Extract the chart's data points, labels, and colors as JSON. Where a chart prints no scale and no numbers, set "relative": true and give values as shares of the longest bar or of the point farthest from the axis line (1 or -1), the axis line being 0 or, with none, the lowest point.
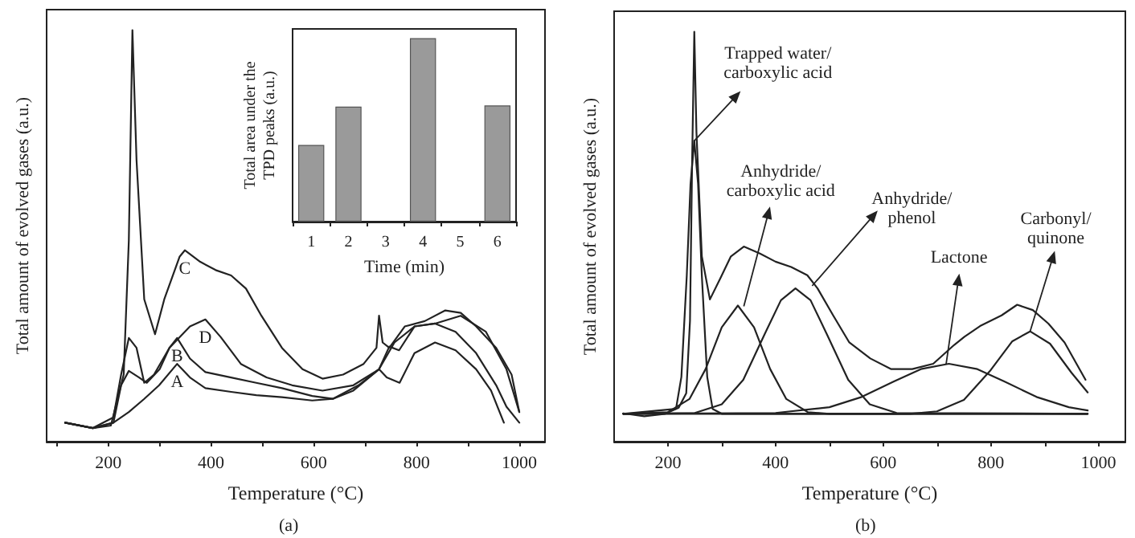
{
  "chart_data": [
    {
      "type": "line",
      "xlabel": "Temperature (°C)",
      "ylabel": "Total amount of evolved gases (a.u.)",
      "relative": true,
      "marker": "none",
      "line_style": "solid",
      "xlim": [
        80,
        1050
      ],
      "xticks": [
        {
          "value": 100,
          "label": null
        },
        200,
        {
          "value": 300,
          "label": null
        },
        400,
        {
          "value": 500,
          "label": null
        },
        600,
        {
          "value": 700,
          "label": null
        },
        800,
        {
          "value": 900,
          "label": null
        },
        1000
      ],
      "annotations": [
        "(a)"
      ],
      "series": [
        {
          "name": "A",
          "color": "#222222",
          "x": [
            116,
            170,
            210,
            240,
            270,
            299,
            334,
            359,
            389,
            439,
            488,
            538,
            597,
            637,
            677,
            727,
            742,
            767,
            796,
            836,
            876,
            916,
            945,
            970
          ],
          "values": [
            0.046,
            0.033,
            0.046,
            0.072,
            0.104,
            0.137,
            0.189,
            0.156,
            0.13,
            0.121,
            0.113,
            0.108,
            0.1,
            0.104,
            0.124,
            0.176,
            0.156,
            0.143,
            0.215,
            0.241,
            0.222,
            0.176,
            0.124,
            0.046
          ]
        },
        {
          "name": "B",
          "color": "#222222",
          "x": [
            116,
            170,
            210,
            225,
            240,
            260,
            275,
            300,
            319,
            334,
            359,
            389,
            439,
            488,
            538,
            597,
            637,
            687,
            727,
            747,
            766,
            796,
            836,
            886,
            935,
            975,
            1000
          ],
          "values": [
            0.046,
            0.033,
            0.046,
            0.137,
            0.172,
            0.156,
            0.143,
            0.176,
            0.228,
            0.252,
            0.202,
            0.169,
            0.156,
            0.143,
            0.13,
            0.111,
            0.104,
            0.137,
            0.176,
            0.231,
            0.222,
            0.28,
            0.287,
            0.306,
            0.267,
            0.176,
            0.072
          ]
        },
        {
          "name": "C",
          "color": "#222222",
          "x": [
            116,
            170,
            205,
            230,
            240,
            247,
            255,
            270,
            291,
            309,
            339,
            349,
            379,
            409,
            439,
            468,
            498,
            538,
            578,
            617,
            657,
            697,
            722,
            727,
            734,
            747,
            777,
            816,
            856,
            886,
            916,
            955,
            985,
            1000
          ],
          "values": [
            0.046,
            0.033,
            0.039,
            0.163,
            0.489,
            1.0,
            0.684,
            0.346,
            0.261,
            0.346,
            0.45,
            0.465,
            0.437,
            0.417,
            0.404,
            0.372,
            0.306,
            0.228,
            0.176,
            0.153,
            0.163,
            0.189,
            0.228,
            0.306,
            0.241,
            0.228,
            0.28,
            0.293,
            0.319,
            0.313,
            0.28,
            0.228,
            0.163,
            0.072
          ]
        },
        {
          "name": "D",
          "color": "#222222",
          "x": [
            116,
            170,
            210,
            225,
            240,
            255,
            270,
            289,
            319,
            359,
            389,
            419,
            458,
            508,
            558,
            617,
            677,
            727,
            757,
            796,
            836,
            876,
            916,
            955,
            975,
            1000
          ],
          "values": [
            0.046,
            0.033,
            0.059,
            0.163,
            0.252,
            0.228,
            0.143,
            0.163,
            0.228,
            0.28,
            0.297,
            0.254,
            0.189,
            0.156,
            0.137,
            0.124,
            0.137,
            0.176,
            0.241,
            0.28,
            0.287,
            0.267,
            0.215,
            0.137,
            0.085,
            0.046
          ]
        }
      ]
    },
    {
      "type": "bar",
      "xlabel": "Time (min)",
      "ylabel": "Total area under the\nTPD peaks (a.u.)",
      "relative": true,
      "categories": [
        "1",
        "2",
        "3",
        "4",
        "5",
        "6"
      ],
      "values": [
        0.418,
        0.627,
        null,
        1,
        null,
        0.633
      ],
      "color": "#9a9a9a"
    },
    {
      "type": "line",
      "xlabel": "Temperature (°C)",
      "ylabel": "Total amount of evolved gases (a.u.)",
      "relative": true,
      "marker": "none",
      "line_style": "solid",
      "xlim": [
        100,
        1050
      ],
      "xticks": [
        200,
        {
          "value": 300,
          "label": null
        },
        400,
        {
          "value": 500,
          "label": null
        },
        600,
        {
          "value": 700,
          "label": null
        },
        800,
        {
          "value": 900,
          "label": null
        },
        1000
      ],
      "annotations": [
        {
          "text": "Trapped water/\ncarboxylic acid",
          "x": 249,
          "y": 0.734
        },
        {
          "text": "Anhydride/\ncarboxylic acid",
          "x": 341,
          "y": 0.33
        },
        {
          "text": "Anhydride/\nphenol",
          "x": 468,
          "y": 0.38
        },
        {
          "text": "Lactone",
          "x": 717,
          "y": 0.19
        },
        {
          "text": "Carbonyl/\nquinone",
          "x": 873,
          "y": 0.269
        },
        "(b)"
      ],
      "series": [
        {
          "color": "#222222",
          "x": [
            117,
            156,
            195,
            220,
            234,
            241,
            245,
            249,
            253,
            263,
            278,
            298,
            317,
            341,
            371,
            400,
            429,
            459,
            478,
            507,
            537,
            576,
            615,
            654,
            693,
            732,
            751,
            780,
            820,
            849,
            878,
            907,
            937,
            976
          ],
          "values": [
            0.069,
            0.062,
            0.068,
            0.083,
            0.118,
            0.295,
            0.688,
            1.0,
            0.754,
            0.452,
            0.347,
            0.4,
            0.452,
            0.476,
            0.459,
            0.439,
            0.426,
            0.406,
            0.374,
            0.308,
            0.242,
            0.203,
            0.177,
            0.177,
            0.19,
            0.236,
            0.256,
            0.282,
            0.308,
            0.334,
            0.321,
            0.288,
            0.242,
            0.151
          ]
        },
        {
          "color": "#222222",
          "x": [
            117,
            215,
            225,
            235,
            242,
            249,
            256,
            263,
            273,
            283,
            300,
            980
          ],
          "values": [
            0.068,
            0.08,
            0.158,
            0.405,
            0.629,
            0.734,
            0.629,
            0.405,
            0.158,
            0.08,
            0.068,
            0.068
          ]
        },
        {
          "color": "#222222",
          "x": [
            117,
            200,
            240,
            270,
            300,
            330,
            360,
            390,
            420,
            460,
            500,
            980
          ],
          "values": [
            0.068,
            0.072,
            0.104,
            0.177,
            0.279,
            0.332,
            0.279,
            0.177,
            0.104,
            0.072,
            0.068,
            0.068
          ]
        },
        {
          "color": "#222222",
          "x": [
            117,
            250,
            300,
            340,
            380,
            410,
            437,
            465,
            495,
            535,
            575,
            625,
            980
          ],
          "values": [
            0.068,
            0.07,
            0.091,
            0.151,
            0.263,
            0.345,
            0.374,
            0.345,
            0.263,
            0.151,
            0.091,
            0.07,
            0.068
          ]
        },
        {
          "color": "#222222",
          "x": [
            117,
            400,
            500,
            560,
            620,
            670,
            722,
            775,
            825,
            885,
            945,
            980
          ],
          "values": [
            0.068,
            0.07,
            0.084,
            0.109,
            0.147,
            0.177,
            0.19,
            0.177,
            0.147,
            0.109,
            0.084,
            0.076
          ]
        },
        {
          "color": "#222222",
          "x": [
            117,
            650,
            700,
            750,
            800,
            840,
            873,
            910,
            950,
            980
          ],
          "values": [
            0.068,
            0.068,
            0.074,
            0.102,
            0.175,
            0.245,
            0.269,
            0.239,
            0.168,
            0.12
          ]
        }
      ]
    }
  ]
}
